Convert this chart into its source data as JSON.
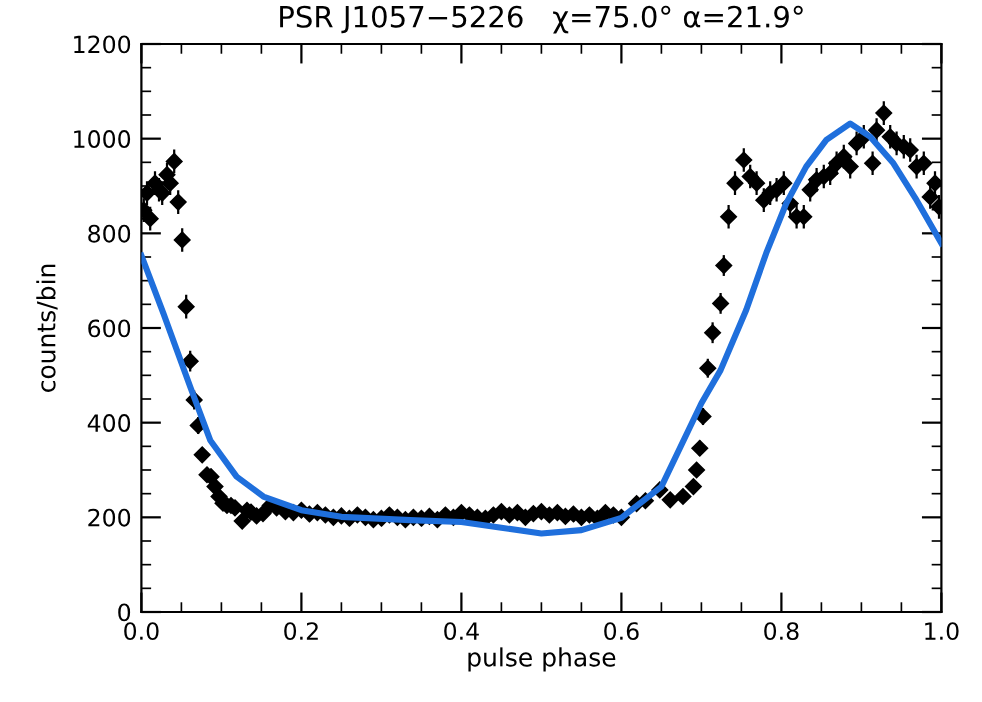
{
  "chart_data": {
    "type": "scatter",
    "title": "PSR J1057−5226   χ=75.0° α=21.9°",
    "xlabel": "pulse phase",
    "ylabel": "counts/bin",
    "xlim": [
      0,
      1
    ],
    "ylim": [
      0,
      1200
    ],
    "xticks": [
      {
        "value": 0,
        "label": "0.0"
      },
      {
        "value": 0.2,
        "label": "0.2"
      },
      {
        "value": 0.4,
        "label": "0.4"
      },
      {
        "value": 0.6,
        "label": "0.6"
      },
      {
        "value": 0.8,
        "label": "0.8"
      },
      {
        "value": 1,
        "label": "1.0"
      }
    ],
    "yticks": [
      0,
      200,
      400,
      600,
      800,
      1000,
      1200
    ],
    "grid": false,
    "legend": false,
    "series": [
      {
        "color": "#000000",
        "marker": "diamond",
        "x": [
          0.003,
          0.007,
          0.011,
          0.017,
          0.022,
          0.026,
          0.032,
          0.036,
          0.041,
          0.046,
          0.051,
          0.056,
          0.061,
          0.066,
          0.071,
          0.076,
          0.082,
          0.087,
          0.092,
          0.097,
          0.102,
          0.107,
          0.112,
          0.117,
          0.126,
          0.132,
          0.137,
          0.144,
          0.152,
          0.161,
          0.169,
          0.18,
          0.19,
          0.2,
          0.21,
          0.22,
          0.23,
          0.24,
          0.25,
          0.26,
          0.27,
          0.28,
          0.29,
          0.3,
          0.31,
          0.32,
          0.33,
          0.34,
          0.35,
          0.36,
          0.37,
          0.38,
          0.39,
          0.4,
          0.41,
          0.42,
          0.43,
          0.44,
          0.45,
          0.46,
          0.47,
          0.48,
          0.49,
          0.5,
          0.51,
          0.52,
          0.53,
          0.54,
          0.55,
          0.56,
          0.57,
          0.58,
          0.59,
          0.6,
          0.619,
          0.63,
          0.648,
          0.661,
          0.677,
          0.69,
          0.694,
          0.698,
          0.702,
          0.708,
          0.714,
          0.724,
          0.728,
          0.734,
          0.742,
          0.753,
          0.761,
          0.769,
          0.778,
          0.786,
          0.794,
          0.803,
          0.811,
          0.819,
          0.828,
          0.836,
          0.844,
          0.853,
          0.861,
          0.869,
          0.878,
          0.886,
          0.894,
          0.903,
          0.914,
          0.919,
          0.928,
          0.936,
          0.944,
          0.953,
          0.961,
          0.969,
          0.978,
          0.986,
          0.992,
          0.997
        ],
        "values": [
          849,
          885,
          831,
          906,
          892,
          885,
          924,
          906,
          952,
          866,
          786,
          645,
          530,
          448,
          394,
          332,
          290,
          286,
          265,
          244,
          230,
          225,
          225,
          220,
          192,
          215,
          211,
          203,
          208,
          225,
          220,
          212,
          210,
          215,
          207,
          210,
          205,
          200,
          203,
          198,
          205,
          200,
          195,
          198,
          205,
          200,
          195,
          200,
          198,
          202,
          195,
          205,
          200,
          210,
          205,
          200,
          198,
          205,
          212,
          205,
          210,
          200,
          208,
          212,
          205,
          210,
          202,
          207,
          200,
          205,
          198,
          210,
          205,
          200,
          229,
          235,
          258,
          237,
          244,
          265,
          300,
          346,
          413,
          515,
          590,
          652,
          732,
          835,
          906,
          955,
          920,
          906,
          870,
          885,
          892,
          906,
          863,
          835,
          835,
          892,
          913,
          920,
          927,
          948,
          962,
          941,
          990,
          1004,
          948,
          1018,
          1054,
          1004,
          990,
          983,
          976,
          941,
          948,
          877,
          906,
          856
        ],
        "errors": [
          25,
          25,
          25,
          25,
          25,
          25,
          25,
          25,
          25,
          25,
          25,
          25,
          22,
          20,
          18,
          15,
          12,
          12,
          12,
          12,
          10,
          10,
          10,
          10,
          10,
          10,
          10,
          10,
          10,
          10,
          10,
          10,
          10,
          10,
          10,
          10,
          10,
          10,
          10,
          10,
          10,
          10,
          10,
          10,
          10,
          10,
          10,
          10,
          10,
          10,
          10,
          10,
          10,
          10,
          10,
          10,
          10,
          10,
          10,
          10,
          10,
          10,
          10,
          10,
          10,
          10,
          10,
          10,
          10,
          10,
          10,
          10,
          10,
          10,
          10,
          10,
          12,
          10,
          10,
          12,
          14,
          16,
          18,
          20,
          22,
          22,
          22,
          25,
          25,
          25,
          25,
          25,
          25,
          25,
          25,
          25,
          25,
          25,
          25,
          25,
          25,
          25,
          25,
          25,
          25,
          25,
          25,
          25,
          25,
          25,
          25,
          25,
          25,
          25,
          25,
          25,
          25,
          25,
          25,
          25
        ]
      },
      {
        "type": "line",
        "color": "#1f6fdc",
        "line_style": "solid",
        "x": [
          0,
          0.0275,
          0.061,
          0.086,
          0.119,
          0.1525,
          0.2,
          0.25,
          0.336,
          0.4,
          0.45,
          0.5,
          0.55,
          0.6,
          0.65,
          0.7,
          0.724,
          0.756,
          0.781,
          0.806,
          0.831,
          0.856,
          0.886,
          0.911,
          0.94,
          0.969,
          1.0
        ],
        "values": [
          753,
          631,
          476,
          363,
          286,
          244,
          215,
          201,
          194,
          190,
          178,
          166,
          173,
          199,
          265,
          441,
          511,
          638,
          758,
          863,
          941,
          997,
          1032,
          1004,
          948,
          870,
          779
        ]
      }
    ]
  }
}
